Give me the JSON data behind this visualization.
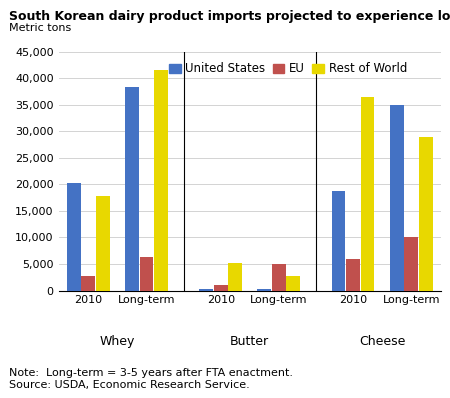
{
  "title": "South Korean dairy product imports projected to experience long-term growth",
  "ylabel": "Metric tons",
  "categories": [
    "Whey",
    "Butter",
    "Cheese"
  ],
  "subcategories": [
    "2010",
    "Long-term"
  ],
  "series": {
    "United States": {
      "color": "#4472C4",
      "values": [
        20300,
        38300,
        200,
        300,
        18700,
        35000
      ]
    },
    "EU": {
      "color": "#C0504D",
      "values": [
        2700,
        6400,
        1000,
        5000,
        6000,
        10100
      ]
    },
    "Rest of World": {
      "color": "#E8D800",
      "values": [
        17800,
        41500,
        5100,
        2700,
        36500,
        29000
      ]
    }
  },
  "ylim": [
    0,
    45000
  ],
  "yticks": [
    0,
    5000,
    10000,
    15000,
    20000,
    25000,
    30000,
    35000,
    40000,
    45000
  ],
  "note": "Note:  Long-term = 3-5 years after FTA enactment.\nSource: USDA, Economic Research Service.",
  "note_fontsize": 8,
  "title_fontsize": 9,
  "legend_fontsize": 8.5,
  "bar_width": 0.18
}
